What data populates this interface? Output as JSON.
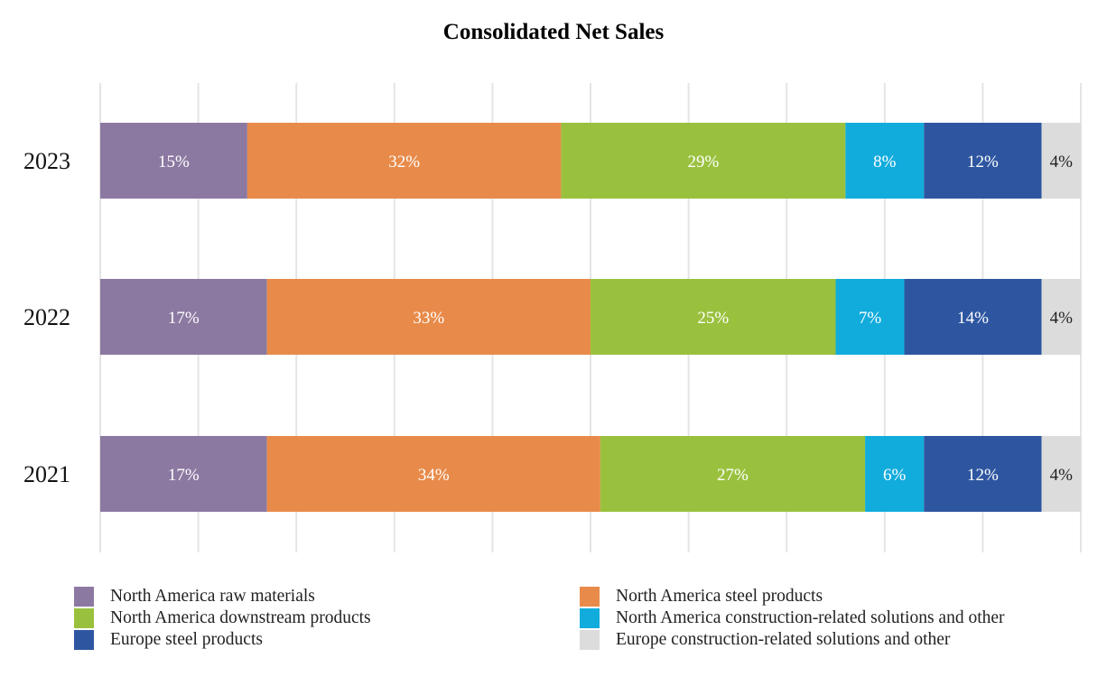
{
  "chart_data": {
    "type": "bar",
    "orientation": "horizontal",
    "stacked": true,
    "title": "Consolidated Net Sales",
    "categories": [
      "2023",
      "2022",
      "2021"
    ],
    "unit": "%",
    "xlim": [
      0,
      100
    ],
    "grid": true,
    "legend_position": "bottom",
    "series": [
      {
        "name": "North America raw materials",
        "color": "#8c79a1",
        "label_color": "#ffffff",
        "values": [
          15,
          17,
          17
        ],
        "labels": [
          "15%",
          "17%",
          "17%"
        ]
      },
      {
        "name": "North America steel products",
        "color": "#e88b4a",
        "label_color": "#ffffff",
        "values": [
          32,
          33,
          34
        ],
        "labels": [
          "32%",
          "33%",
          "34%"
        ]
      },
      {
        "name": "North America downstream products",
        "color": "#9ac13e",
        "label_color": "#ffffff",
        "values": [
          29,
          25,
          27
        ],
        "labels": [
          "29%",
          "25%",
          "27%"
        ]
      },
      {
        "name": "North America construction-related solutions and other",
        "color": "#12acdc",
        "label_color": "#ffffff",
        "values": [
          8,
          7,
          6
        ],
        "labels": [
          "8%",
          "7%",
          "6%"
        ]
      },
      {
        "name": "Europe steel products",
        "color": "#2e56a0",
        "label_color": "#ffffff",
        "values": [
          12,
          14,
          12
        ],
        "labels": [
          "12%",
          "14%",
          "12%"
        ]
      },
      {
        "name": "Europe construction-related solutions and other",
        "color": "#dcdcdc",
        "label_color": "#222222",
        "values": [
          4,
          4,
          4
        ],
        "labels": [
          "4%",
          "4%",
          "4%"
        ]
      }
    ]
  }
}
